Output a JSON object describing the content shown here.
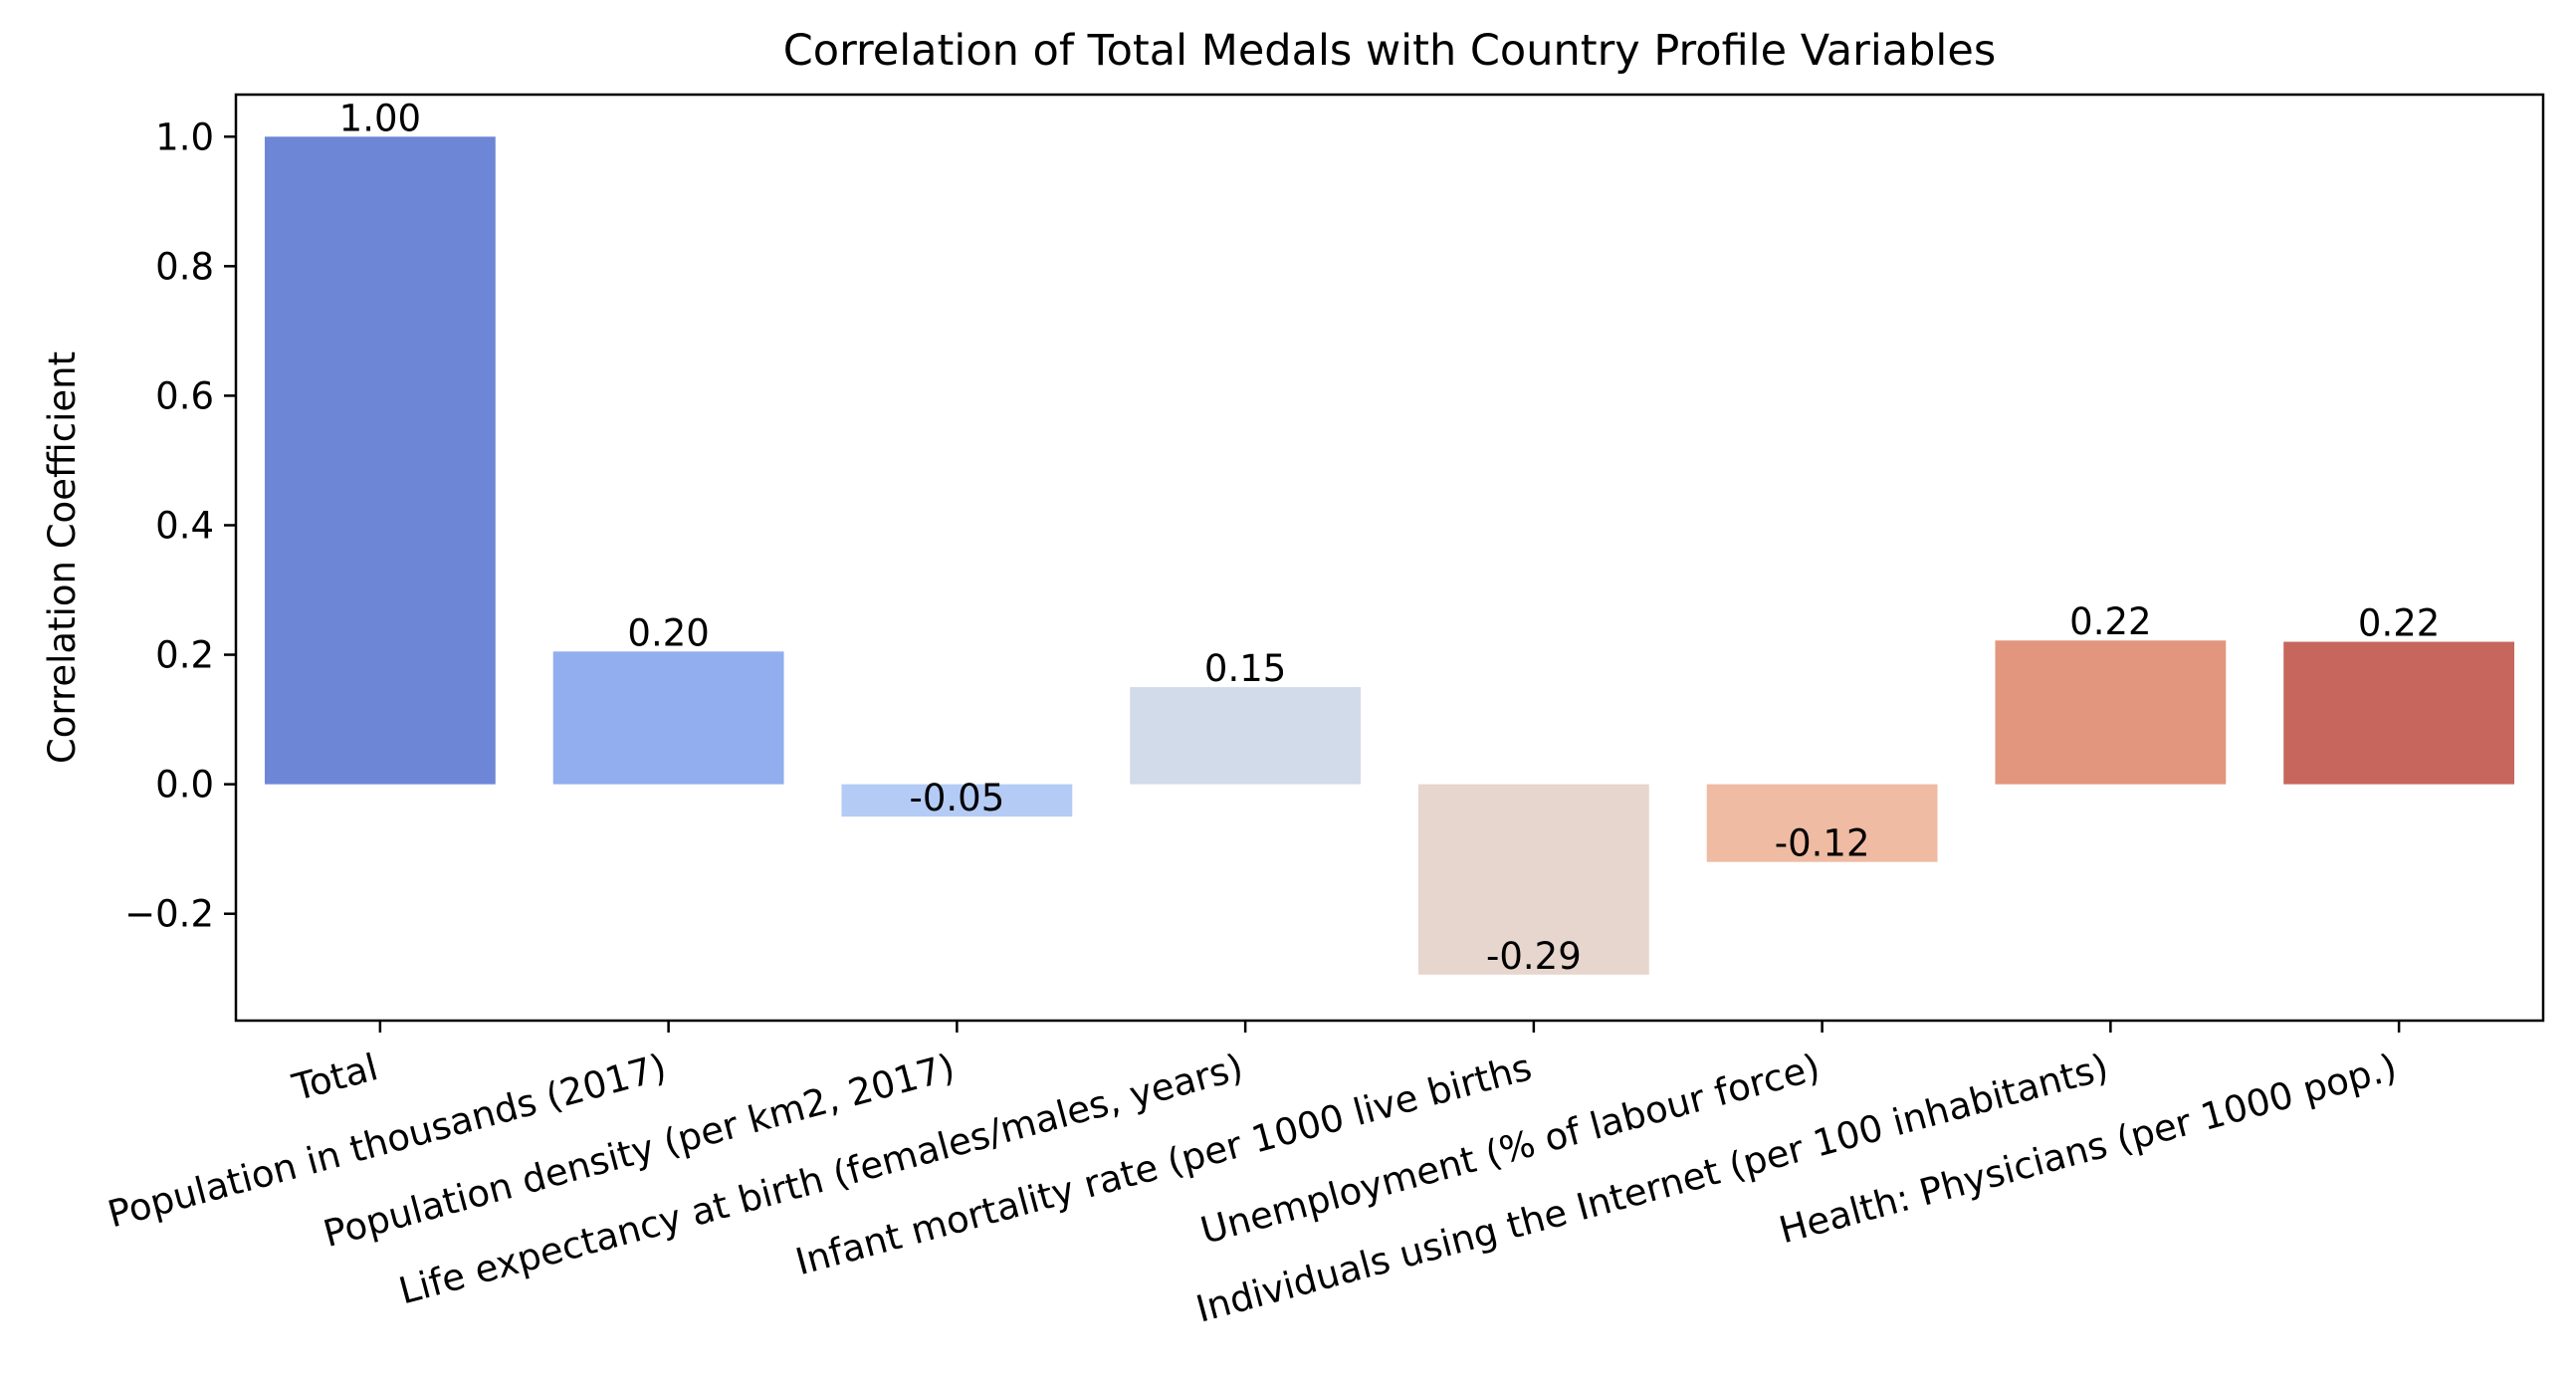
{
  "chart_data": {
    "type": "bar",
    "title": "Correlation of Total Medals with Country Profile Variables",
    "xlabel": "",
    "ylabel": "Correlation Coefficient",
    "categories": [
      "Total",
      "Population in thousands (2017)",
      "Population density (per km2, 2017)",
      "Life expectancy at birth (females/males, years)",
      "Infant mortality rate (per 1000 live births",
      "Unemployment (% of labour force)",
      "Individuals using the Internet (per 100 inhabitants)",
      "Health: Physicians (per 1000 pop.)"
    ],
    "values": [
      1.0,
      0.205,
      -0.05,
      0.15,
      -0.294,
      -0.12,
      0.222,
      0.22
    ],
    "data_labels": [
      "1.00",
      "0.20",
      "-0.05",
      "0.15",
      "-0.29",
      "-0.12",
      "0.22",
      "0.22"
    ],
    "colors": [
      "#6e86d6",
      "#92aeee",
      "#b3cbf5",
      "#d2dbea",
      "#e6d6cd",
      "#efbba2",
      "#e2967e",
      "#c6665c"
    ],
    "ylim": [
      -0.365,
      1.065
    ],
    "yticks": [
      -0.2,
      0.0,
      0.2,
      0.4,
      0.6,
      0.8,
      1.0
    ],
    "ytick_labels": [
      "−0.2",
      "0.0",
      "0.2",
      "0.4",
      "0.6",
      "0.8",
      "1.0"
    ],
    "grid": false,
    "legend": "none"
  }
}
